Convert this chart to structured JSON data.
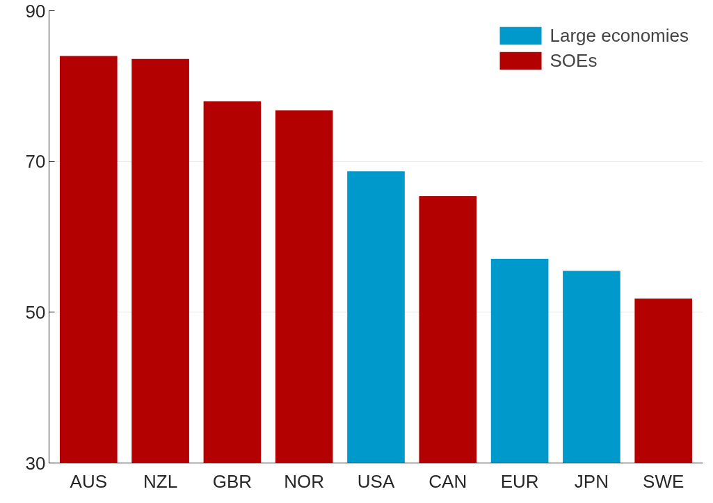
{
  "chart_data": {
    "type": "bar",
    "categories": [
      "AUS",
      "NZL",
      "GBR",
      "NOR",
      "USA",
      "CAN",
      "EUR",
      "JPN",
      "SWE"
    ],
    "series": [
      {
        "name": "Large economies",
        "color": "#0099cc",
        "values": [
          null,
          null,
          null,
          null,
          68.7,
          null,
          57.1,
          55.5,
          null
        ]
      },
      {
        "name": "SOEs",
        "color": "#b30000",
        "values": [
          84.0,
          83.6,
          78.0,
          76.8,
          null,
          65.4,
          null,
          null,
          51.8
        ]
      }
    ],
    "ylim": [
      30,
      90
    ],
    "yticks": [
      30,
      50,
      70,
      90
    ],
    "grid": "y",
    "legend": "top right"
  }
}
